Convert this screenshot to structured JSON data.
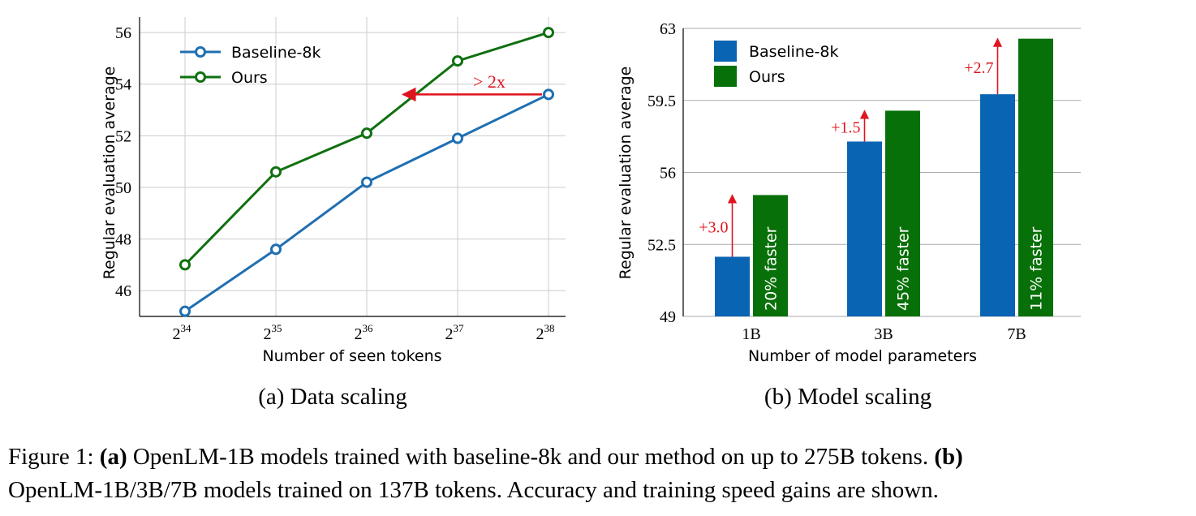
{
  "chart_data": [
    {
      "type": "line",
      "xlabel": "Number of seen tokens",
      "ylabel": "Regular evaluation average",
      "x_tick_base": "2",
      "x_tick_exponents": [
        "34",
        "35",
        "36",
        "37",
        "38"
      ],
      "x": [
        34,
        35,
        36,
        37,
        38
      ],
      "ylim": [
        45,
        56.6
      ],
      "yticks": [
        "46",
        "48",
        "50",
        "52",
        "54",
        "56"
      ],
      "grid": true,
      "legend_position": "top-left",
      "series": [
        {
          "name": "Baseline-8k",
          "color": "#1f6fb2",
          "values": [
            45.2,
            47.6,
            50.2,
            51.9,
            53.6
          ]
        },
        {
          "name": "Ours",
          "color": "#107010",
          "values": [
            47.0,
            50.6,
            52.1,
            54.9,
            56.0
          ]
        }
      ],
      "annotation": {
        "text": "> 2x",
        "color": "#e0141e",
        "y": 53.6,
        "x_from": 38,
        "x_to": 36.4
      },
      "subcaption": "(a) Data scaling"
    },
    {
      "type": "bar",
      "xlabel": "Number of model parameters",
      "ylabel": "Regular evaluation average",
      "categories": [
        "1B",
        "3B",
        "7B"
      ],
      "ylim": [
        49,
        63
      ],
      "yticks": [
        "49",
        "52.5",
        "56",
        "59.5",
        "63"
      ],
      "grid": true,
      "legend_position": "top-left",
      "series": [
        {
          "name": "Baseline-8k",
          "color": "#0a64b4",
          "values": [
            51.9,
            57.5,
            59.8
          ]
        },
        {
          "name": "Ours",
          "color": "#087008",
          "values": [
            54.9,
            59.0,
            62.5
          ]
        }
      ],
      "gain_labels": [
        "+3.0",
        "+1.5",
        "+2.7"
      ],
      "speed_labels": [
        "20% faster",
        "45% faster",
        "11% faster"
      ],
      "annotation_color": "#e0141e",
      "subcaption": "(b) Model scaling"
    }
  ],
  "caption": {
    "prefix": "Figure 1: ",
    "a_tag": "(a)",
    "a_text": " OpenLM-1B models trained with baseline-8k and our method on up to 275B tokens. ",
    "b_tag": "(b)",
    "line2": "OpenLM-1B/3B/7B models trained on 137B tokens. Accuracy and training speed gains are shown."
  }
}
